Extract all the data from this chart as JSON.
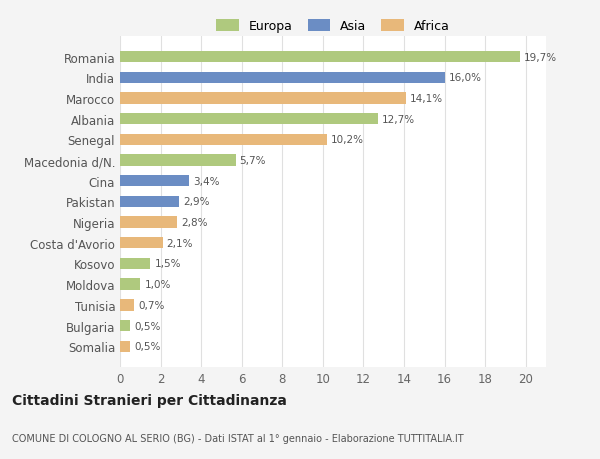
{
  "categories": [
    "Romania",
    "India",
    "Marocco",
    "Albania",
    "Senegal",
    "Macedonia d/N.",
    "Cina",
    "Pakistan",
    "Nigeria",
    "Costa d'Avorio",
    "Kosovo",
    "Moldova",
    "Tunisia",
    "Bulgaria",
    "Somalia"
  ],
  "values": [
    19.7,
    16.0,
    14.1,
    12.7,
    10.2,
    5.7,
    3.4,
    2.9,
    2.8,
    2.1,
    1.5,
    1.0,
    0.7,
    0.5,
    0.5
  ],
  "labels": [
    "19,7%",
    "16,0%",
    "14,1%",
    "12,7%",
    "10,2%",
    "5,7%",
    "3,4%",
    "2,9%",
    "2,8%",
    "2,1%",
    "1,5%",
    "1,0%",
    "0,7%",
    "0,5%",
    "0,5%"
  ],
  "colors": [
    "#afc97e",
    "#6b8dc4",
    "#e8b87a",
    "#afc97e",
    "#e8b87a",
    "#afc97e",
    "#6b8dc4",
    "#6b8dc4",
    "#e8b87a",
    "#e8b87a",
    "#afc97e",
    "#afc97e",
    "#e8b87a",
    "#afc97e",
    "#e8b87a"
  ],
  "legend": [
    {
      "label": "Europa",
      "color": "#afc97e"
    },
    {
      "label": "Asia",
      "color": "#6b8dc4"
    },
    {
      "label": "Africa",
      "color": "#e8b87a"
    }
  ],
  "title": "Cittadini Stranieri per Cittadinanza",
  "subtitle": "COMUNE DI COLOGNO AL SERIO (BG) - Dati ISTAT al 1° gennaio - Elaborazione TUTTITALIA.IT",
  "xlim": [
    0,
    21
  ],
  "xticks": [
    0,
    2,
    4,
    6,
    8,
    10,
    12,
    14,
    16,
    18,
    20
  ],
  "background_color": "#f4f4f4",
  "bar_background": "#ffffff",
  "grid_color": "#e0e0e0"
}
